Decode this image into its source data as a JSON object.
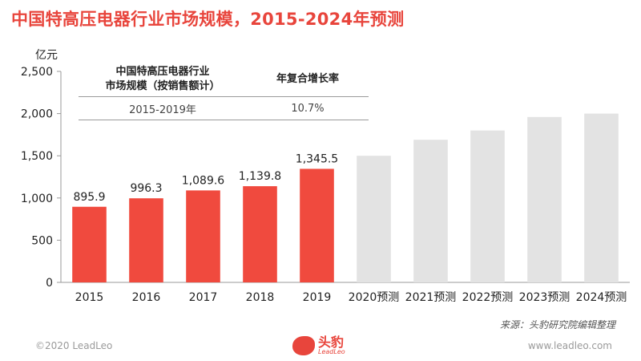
{
  "title": "中国特高压电器行业市场规模，2015-2024年预测",
  "unit": "亿元",
  "cagr_table": {
    "header_col1_line1": "中国特高压电器行业",
    "header_col1_line2": "市场规模（按销售额计）",
    "header_col2": "年复合增长率",
    "period": "2015-2019年",
    "rate": "10.7%"
  },
  "source": "来源：头豹研究院编辑整理",
  "footer": {
    "copyright": "©2020 LeadLeo",
    "website": "www.leadleo.com",
    "logo_cn": "头豹",
    "logo_en": "LeadLeo"
  },
  "colors": {
    "actual_bar": "#f04a3e",
    "forecast_bar": "#e3e3e3",
    "title": "#e8453c"
  },
  "chart_data": {
    "type": "bar",
    "categories": [
      "2015",
      "2016",
      "2017",
      "2018",
      "2019",
      "2020预测",
      "2021预测",
      "2022预测",
      "2023预测",
      "2024预测"
    ],
    "values": [
      895.9,
      996.3,
      1089.6,
      1139.8,
      1345.5,
      1500,
      1690,
      1800,
      1960,
      2000
    ],
    "data_labels": [
      "895.9",
      "996.3",
      "1,089.6",
      "1,139.8",
      "1,345.5",
      "",
      "",
      "",
      "",
      ""
    ],
    "forecast": [
      false,
      false,
      false,
      false,
      false,
      true,
      true,
      true,
      true,
      true
    ],
    "yticks": [
      0,
      500,
      1000,
      1500,
      2000,
      2500
    ],
    "ytick_labels": [
      "0",
      "500",
      "1,000",
      "1,500",
      "2,000",
      "2,500"
    ],
    "ylim": [
      0,
      2500
    ],
    "ylabel": "亿元",
    "grid": false,
    "legend": false
  }
}
